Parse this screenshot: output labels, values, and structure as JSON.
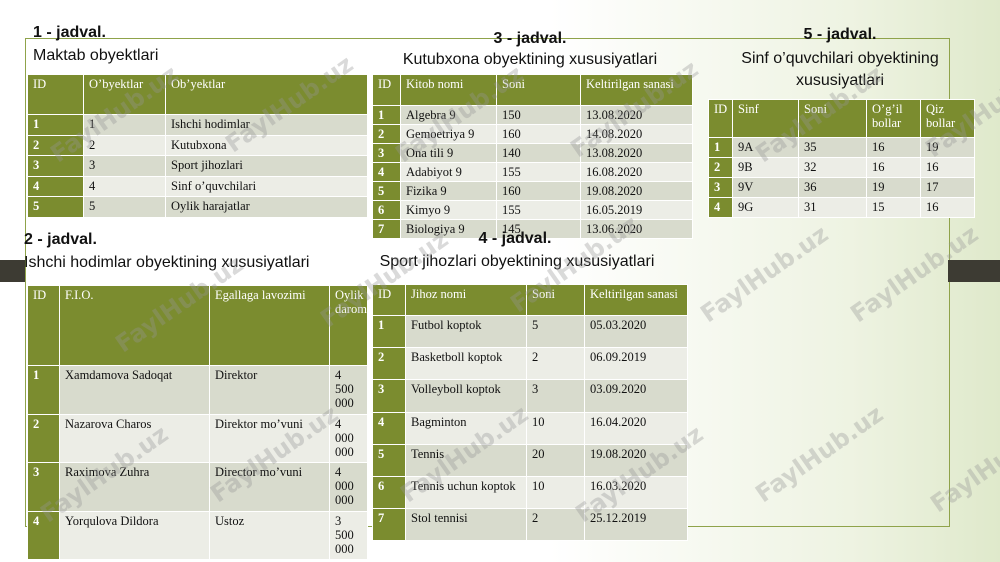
{
  "watermark": "FaylHub.uz",
  "tables": [
    {
      "number": "1 - jadval.",
      "title": "Maktab obyektlari",
      "columns": [
        "ID",
        "O’byektlar",
        "Ob’yektlar"
      ],
      "rows": [
        [
          1,
          1,
          "Ishchi hodimlar"
        ],
        [
          2,
          2,
          "Kutubxona"
        ],
        [
          3,
          3,
          "Sport jihozlari"
        ],
        [
          4,
          4,
          "Sinf o’quvchilari"
        ],
        [
          5,
          5,
          "Oylik harajatlar"
        ]
      ]
    },
    {
      "number": "2 - jadval.",
      "title": "Ishchi hodimlar obyektining xususiyatlari",
      "columns": [
        "ID",
        "F.I.O.",
        "Egallaga lavozimi",
        "Oylik daromadi"
      ],
      "rows": [
        [
          1,
          "Xamdamova Sadoqat",
          "Direktor",
          "4 500 000"
        ],
        [
          2,
          "Nazarova Charos",
          "Direktor mo’vuni",
          "4 000 000"
        ],
        [
          3,
          "Raximova Zuhra",
          "Director mo’vuni",
          "4 000 000"
        ],
        [
          4,
          "Yorqulova Dildora",
          "Ustoz",
          "3 500 000"
        ]
      ]
    },
    {
      "number": "3 - jadval.",
      "title": "Kutubxona obyektining xususiyatlari",
      "columns": [
        "ID",
        "Kitob nomi",
        "Soni",
        "Keltirilgan sanasi"
      ],
      "rows": [
        [
          1,
          "Algebra 9",
          150,
          "13.08.2020"
        ],
        [
          2,
          "Gemoetriya 9",
          160,
          "14.08.2020"
        ],
        [
          3,
          "Ona tili 9",
          140,
          "13.08.2020"
        ],
        [
          4,
          "Adabiyot 9",
          155,
          "16.08.2020"
        ],
        [
          5,
          "Fizika 9",
          160,
          "19.08.2020"
        ],
        [
          6,
          "Kimyo 9",
          155,
          "16.05.2019"
        ],
        [
          7,
          "Biologiya 9",
          145,
          "13.06.2020"
        ]
      ]
    },
    {
      "number": "4 - jadval.",
      "title": "Sport jihozlari obyektining xususiyatlari",
      "columns": [
        "ID",
        "Jihoz nomi",
        "Soni",
        "Keltirilgan sanasi"
      ],
      "rows": [
        [
          1,
          "Futbol koptok",
          5,
          "05.03.2020"
        ],
        [
          2,
          "Basketboll koptok",
          2,
          "06.09.2019"
        ],
        [
          3,
          "Volleyboll koptok",
          3,
          "03.09.2020"
        ],
        [
          4,
          "Bagminton",
          10,
          "16.04.2020"
        ],
        [
          5,
          "Tennis",
          20,
          "19.08.2020"
        ],
        [
          6,
          "Tennis uchun koptok",
          10,
          "16.03.2020"
        ],
        [
          7,
          "Stol tennisi",
          2,
          "25.12.2019"
        ]
      ]
    },
    {
      "number": "5 - jadval.",
      "title": "Sinf o’quvchilari obyektining xususiyatlari",
      "columns": [
        "ID",
        "Sinf",
        "Soni",
        "O’g’il bollar",
        "Qiz bollar"
      ],
      "rows": [
        [
          1,
          "9A",
          35,
          16,
          19
        ],
        [
          2,
          "9B",
          32,
          16,
          16
        ],
        [
          3,
          "9V",
          36,
          19,
          17
        ],
        [
          4,
          "9G",
          31,
          15,
          16
        ]
      ]
    }
  ]
}
